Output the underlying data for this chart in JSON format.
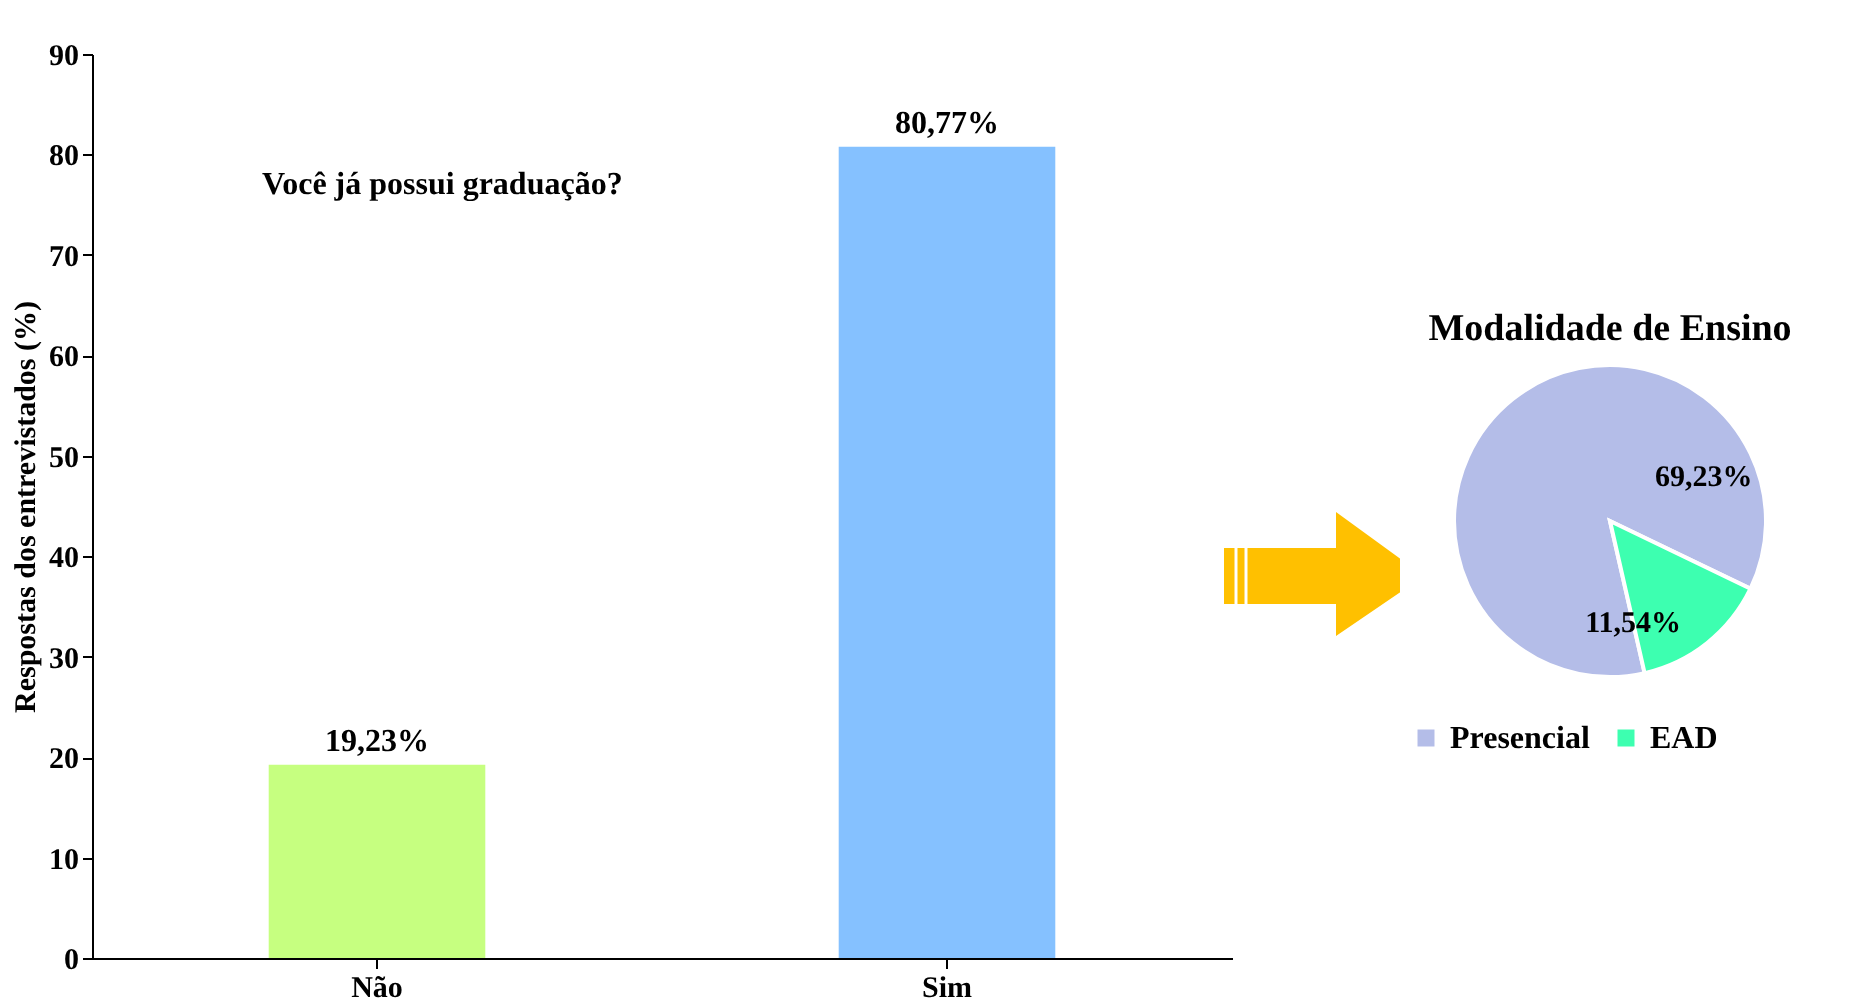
{
  "chart_data": [
    {
      "type": "bar",
      "ylabel": "Respostas dos entrevistados (%)",
      "categories": [
        "Não",
        "Sim"
      ],
      "values": [
        19.23,
        80.77
      ],
      "colors": [
        "#c6ff80",
        "#85c1ff"
      ],
      "value_labels": [
        "19,23%",
        "80,77%"
      ],
      "ylim": [
        0,
        90
      ],
      "yticks": [
        0,
        10,
        20,
        30,
        40,
        50,
        60,
        70,
        80,
        90
      ],
      "annotations": [
        "Você já possui graduação?"
      ]
    },
    {
      "type": "pie",
      "title": "Modalidade de Ensino",
      "categories": [
        "Presencial",
        "EAD"
      ],
      "values": [
        69.23,
        11.54
      ],
      "colors": [
        "#b4bde8",
        "#3dffb0"
      ],
      "value_labels": [
        "69,23%",
        "11,54%"
      ],
      "legend": "bottom"
    }
  ]
}
